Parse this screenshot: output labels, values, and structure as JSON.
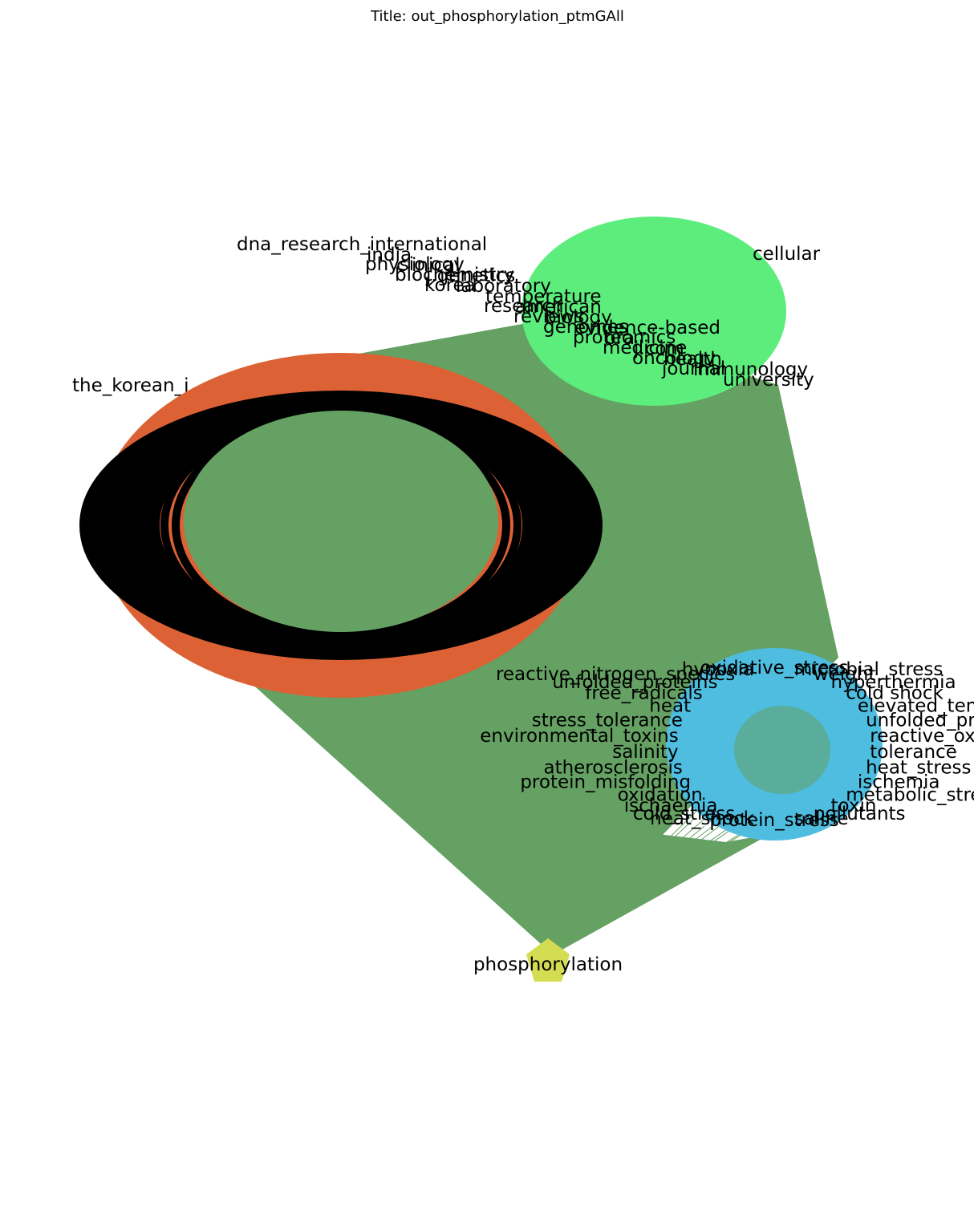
{
  "title": "Title: out_phosphorylation_ptmGAll",
  "colors": {
    "edge": "#65a163",
    "journal_cluster": "#5ced7d",
    "pathway_cluster": "#dc6235",
    "stress_cluster": "#4ebde0",
    "hub": "#d4dc52",
    "text": "#000000",
    "background": "#ffffff"
  },
  "hub": {
    "label": "phosphorylation"
  },
  "clusters": {
    "journals": {
      "labels": [
        "dna_research_international",
        "india",
        "clinical",
        "j.genetics",
        "laboratory",
        "temperature",
        "american",
        "biology",
        "evidence-based",
        "bra",
        "j.com",
        "health",
        "immunology",
        "university",
        "cellular",
        "physiology",
        "biochemistry",
        "korea",
        "the_korean_j",
        "research",
        "reviews",
        "genomes",
        "proteomics",
        "medicine",
        "oncology",
        "journal"
      ]
    },
    "pathways": {
      "labels": []
    },
    "stress": {
      "labels": [
        "oxidative_stress",
        "microbial_stress",
        "weight",
        "hyperthermia",
        "cold shock",
        "elevated_temperature",
        "unfolded_protein_response",
        "reactive_oxygen_species",
        "tolerance",
        "heat_stress",
        "ischemia",
        "metabolic_stress",
        "toxin",
        "pollutants",
        "saline",
        "protein_stress",
        "heat_shock",
        "cold_stress",
        "ischaemia",
        "oxidation",
        "protein_misfolding",
        "atherosclerosis",
        "salinity",
        "environmental_toxins",
        "stress_tolerance",
        "heat",
        "free_radicals",
        "unfolded_proteins",
        "reactive_nitrogen_species",
        "hypoxia"
      ]
    }
  }
}
